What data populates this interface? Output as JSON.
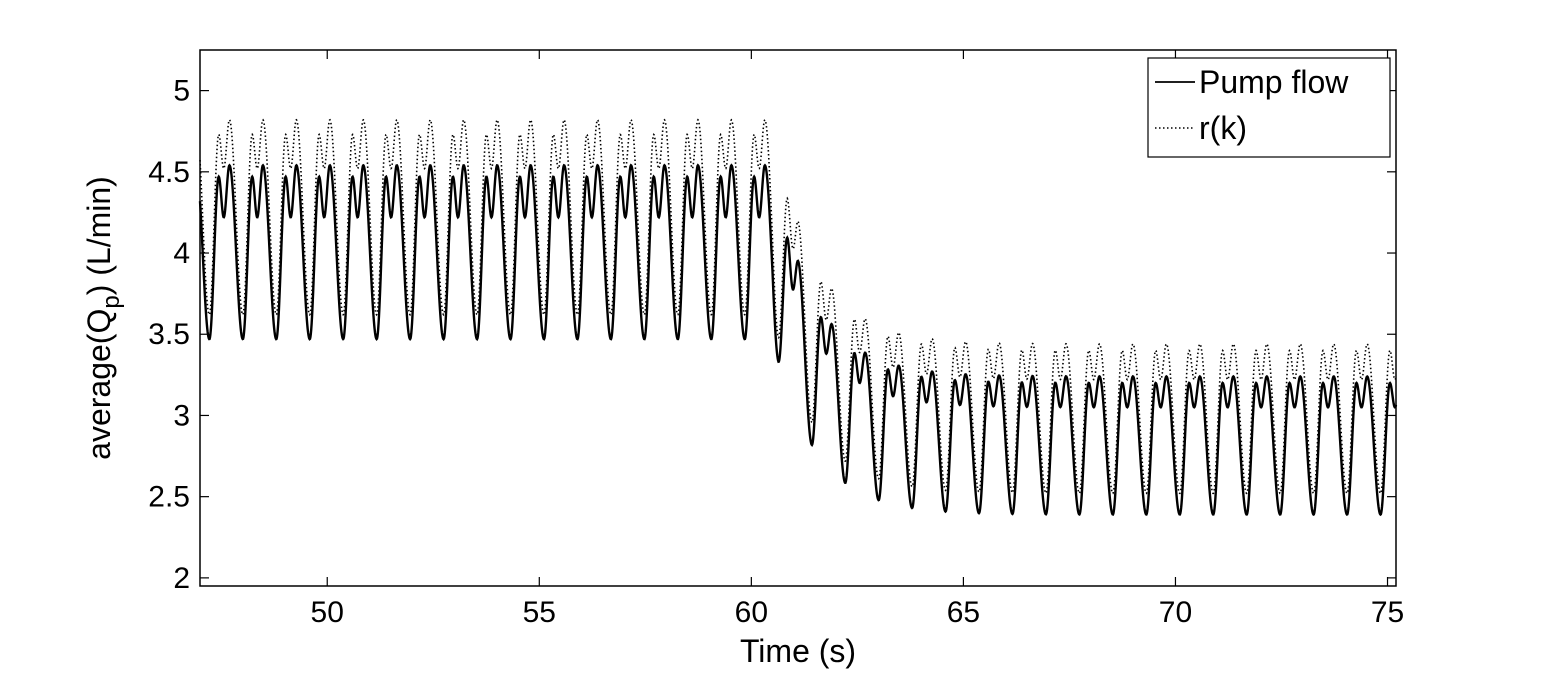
{
  "chart_data": {
    "type": "line",
    "xlabel": "Time (s)",
    "ylabel": {
      "prefix": "average(Q",
      "subscript": "p",
      "suffix": ") (L/min)"
    },
    "xlim": [
      47,
      75.2
    ],
    "ylim": [
      1.95,
      5.25
    ],
    "xticks": [
      50,
      55,
      60,
      65,
      70,
      75
    ],
    "yticks": [
      2,
      2.5,
      3,
      3.5,
      4,
      4.5,
      5
    ],
    "grid": false,
    "legend_position": "top-right",
    "period_s": 0.789,
    "step_time_s": 60.5,
    "series": [
      {
        "name": "Pump flow",
        "line_style": "solid",
        "color": "#000000",
        "before_step": {
          "min": 3.47,
          "peak": 4.54,
          "shoulder": 4.47,
          "notch": 4.22
        },
        "after_step": {
          "min": 2.39,
          "peak": 3.24,
          "shoulder": 3.2,
          "notch": 3.05
        }
      },
      {
        "name": "r(k)",
        "line_style": "dotted",
        "color": "#000000",
        "before_step": {
          "min": 3.62,
          "peak": 4.82,
          "shoulder": 4.73,
          "notch": 4.52
        },
        "after_step": {
          "min": 2.52,
          "peak": 3.44,
          "shoulder": 3.4,
          "notch": 3.22
        }
      }
    ]
  }
}
